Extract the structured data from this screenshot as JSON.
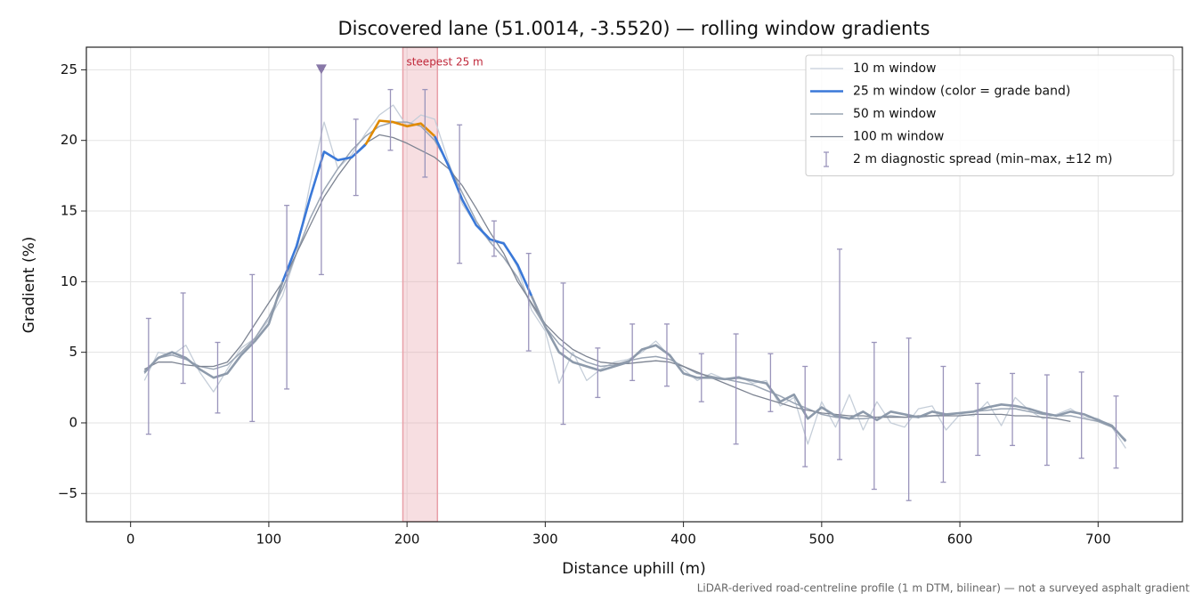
{
  "chart_data": {
    "type": "line",
    "title": "Discovered lane (51.0014, -3.5520) — rolling window gradients",
    "x_label": "Distance uphill (m)",
    "y_label": "Gradient (%)",
    "footnote": "LiDAR-derived road-centreline profile (1 m DTM, bilinear) — not a surveyed asphalt gradient",
    "xlim": [
      -32,
      761
    ],
    "ylim": [
      -7.0,
      26.6
    ],
    "xticks": [
      0,
      100,
      200,
      300,
      400,
      500,
      600,
      700
    ],
    "yticks": [
      {
        "value": -5,
        "label": "−5"
      },
      0,
      5,
      10,
      15,
      20,
      25
    ],
    "grid": true,
    "legend": "upper right",
    "x": [
      10,
      20,
      30,
      40,
      50,
      60,
      70,
      80,
      90,
      100,
      110,
      120,
      130,
      140,
      150,
      160,
      170,
      180,
      190,
      200,
      210,
      220,
      230,
      240,
      250,
      260,
      270,
      280,
      290,
      300,
      310,
      320,
      330,
      340,
      350,
      360,
      370,
      380,
      390,
      400,
      410,
      420,
      430,
      440,
      450,
      460,
      470,
      480,
      490,
      500,
      510,
      520,
      530,
      540,
      550,
      560,
      570,
      580,
      590,
      600,
      610,
      620,
      630,
      640,
      650,
      660,
      670,
      680,
      690,
      700,
      710,
      720
    ],
    "series": [
      {
        "name": "10 m window",
        "color": "#c5ced9",
        "width": 1.3,
        "values": [
          3.0,
          5.0,
          4.8,
          5.5,
          3.6,
          2.2,
          3.8,
          5.3,
          6.0,
          7.3,
          9.0,
          12.0,
          17.0,
          21.3,
          18.0,
          19.0,
          20.5,
          21.8,
          22.5,
          21.0,
          21.8,
          21.5,
          18.5,
          15.5,
          14.0,
          12.8,
          12.8,
          11.0,
          8.0,
          6.5,
          2.8,
          5.0,
          3.0,
          3.8,
          4.3,
          4.5,
          5.0,
          5.8,
          4.7,
          3.8,
          3.0,
          3.5,
          3.1,
          3.3,
          2.8,
          3.0,
          1.2,
          1.8,
          -1.5,
          1.5,
          -0.3,
          2.0,
          -0.5,
          1.5,
          0.0,
          -0.3,
          1.0,
          1.2,
          -0.5,
          0.6,
          0.5,
          1.5,
          -0.2,
          1.8,
          0.9,
          0.3,
          0.6,
          1.0,
          0.4,
          0.3,
          -0.3,
          -1.8
        ]
      },
      {
        "name": "25 m window (color = grade band)",
        "color": "#3a78d8",
        "width": 2.6,
        "base_color": "#8d9aab",
        "grade_bands": [
          {
            "min": 10,
            "color": "#3a78d8"
          },
          {
            "min": 20,
            "color": "#e08a00"
          }
        ],
        "values": [
          3.6,
          4.6,
          5.0,
          4.6,
          3.8,
          3.2,
          3.5,
          4.8,
          5.8,
          7.0,
          10.0,
          12.5,
          16.0,
          19.2,
          18.6,
          18.8,
          19.7,
          21.4,
          21.3,
          21.0,
          21.2,
          20.3,
          18.2,
          15.8,
          14.0,
          13.0,
          12.7,
          11.2,
          9.0,
          6.8,
          5.0,
          4.3,
          4.0,
          3.7,
          4.0,
          4.3,
          5.2,
          5.5,
          4.8,
          3.5,
          3.2,
          3.2,
          3.1,
          3.2,
          3.0,
          2.8,
          1.5,
          2.0,
          0.3,
          1.1,
          0.5,
          0.3,
          0.8,
          0.2,
          0.8,
          0.6,
          0.4,
          0.8,
          0.6,
          0.7,
          0.8,
          1.1,
          1.3,
          1.2,
          1.0,
          0.7,
          0.5,
          0.8,
          0.6,
          0.2,
          -0.2,
          -1.3
        ]
      },
      {
        "name": "50 m window",
        "color": "#9aa5b4",
        "width": 1.5,
        "values": [
          3.5,
          4.6,
          4.8,
          4.5,
          4.0,
          3.8,
          4.1,
          5.0,
          6.0,
          7.5,
          9.5,
          12.0,
          14.5,
          16.5,
          18.0,
          19.3,
          20.3,
          21.0,
          21.3,
          21.3,
          21.0,
          20.0,
          18.3,
          16.3,
          14.3,
          12.8,
          11.7,
          10.3,
          8.4,
          6.8,
          5.6,
          4.8,
          4.3,
          4.0,
          4.1,
          4.4,
          4.6,
          4.7,
          4.5,
          4.0,
          3.5,
          3.3,
          3.1,
          2.9,
          2.7,
          2.3,
          1.9,
          1.4,
          1.0,
          0.6,
          0.4,
          0.3,
          0.3,
          0.4,
          0.5,
          0.4,
          0.4,
          0.5,
          0.6,
          0.7,
          0.8,
          0.9,
          1.0,
          1.0,
          0.8,
          0.6,
          0.5,
          0.5,
          0.3,
          0.1,
          -0.3,
          -1.2
        ]
      },
      {
        "name": "100 m window",
        "color": "#7d8492",
        "width": 1.3,
        "values": [
          3.8,
          4.3,
          4.3,
          4.1,
          4.0,
          4.0,
          4.3,
          5.5,
          7.0,
          8.5,
          10.0,
          12.0,
          14.0,
          16.0,
          17.5,
          18.8,
          19.8,
          20.4,
          20.2,
          19.8,
          19.3,
          18.8,
          18.0,
          16.8,
          15.2,
          13.5,
          12.0,
          10.0,
          8.5,
          7.0,
          6.0,
          5.2,
          4.7,
          4.3,
          4.2,
          4.2,
          4.3,
          4.4,
          4.3,
          4.0,
          3.6,
          3.2,
          2.8,
          2.4,
          2.0,
          1.7,
          1.4,
          1.1,
          0.9,
          0.7,
          0.6,
          0.5,
          0.5,
          0.4,
          0.4,
          0.4,
          0.5,
          0.5,
          0.5,
          0.5,
          0.6,
          0.6,
          0.6,
          0.5,
          0.5,
          0.4,
          0.3,
          0.1,
          null,
          null,
          null,
          null
        ]
      }
    ],
    "errorbars": {
      "name": "2 m diagnostic spread (min–max, ±12 m)",
      "color": "#9a94bb",
      "x": [
        13,
        38,
        63,
        88,
        113,
        138,
        163,
        188,
        213,
        238,
        263,
        288,
        313,
        338,
        363,
        388,
        413,
        438,
        463,
        488,
        513,
        538,
        563,
        588,
        613,
        638,
        663,
        688,
        713
      ],
      "low": [
        -0.8,
        2.8,
        0.7,
        0.1,
        2.4,
        10.5,
        16.1,
        19.3,
        17.4,
        11.3,
        11.8,
        5.1,
        -0.1,
        1.8,
        3.0,
        2.6,
        1.5,
        -1.5,
        0.8,
        -3.1,
        -2.6,
        -4.7,
        -5.5,
        -4.2,
        -2.3,
        -1.6,
        -3.0,
        -2.5,
        -3.2
      ],
      "high": [
        7.4,
        9.2,
        5.7,
        10.5,
        15.4,
        25.0,
        21.5,
        23.6,
        23.6,
        21.1,
        14.3,
        12.0,
        9.9,
        5.3,
        7.0,
        7.0,
        4.9,
        6.3,
        4.9,
        4.0,
        12.3,
        5.7,
        6.0,
        4.0,
        2.8,
        3.5,
        3.4,
        3.6,
        1.9
      ]
    },
    "peak_marker": {
      "x": 138,
      "y": 25,
      "color": "#8878a8"
    },
    "highlight": {
      "label": "steepest 25 m",
      "x": [
        197,
        222
      ],
      "color": "#e8a0a8",
      "label_color": "#c0283a"
    }
  }
}
